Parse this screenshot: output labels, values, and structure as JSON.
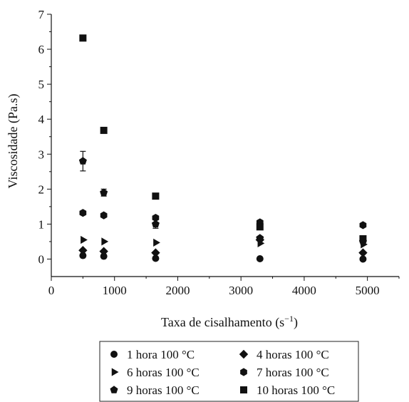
{
  "chart_data": {
    "type": "scatter",
    "xlabel": "Taxa de cisalhamento (s",
    "xlabel_sup": "−1",
    "xlabel_close": ")",
    "ylabel": "Viscosidade (Pa.s)",
    "xlim": [
      0,
      5500
    ],
    "ylim": [
      -0.5,
      7
    ],
    "x_ticks": [
      0,
      1000,
      2000,
      3000,
      4000,
      5000
    ],
    "y_ticks": [
      0,
      1,
      2,
      3,
      4,
      5,
      6,
      7
    ],
    "grid": false,
    "legend_position": "bottom",
    "series": [
      {
        "name": "1 hora 100 °C",
        "marker": "circle",
        "points": [
          [
            500,
            0.1
          ],
          [
            830,
            0.08
          ],
          [
            1650,
            0.02
          ],
          [
            3300,
            0.01
          ],
          [
            4930,
            0.0
          ]
        ]
      },
      {
        "name": "4 horas 100 °C",
        "marker": "diamond",
        "points": [
          [
            500,
            0.25
          ],
          [
            830,
            0.22
          ],
          [
            1650,
            0.18
          ],
          [
            3300,
            0.55
          ],
          [
            4930,
            0.18
          ]
        ]
      },
      {
        "name": "6 horas 100 °C",
        "marker": "triangle-right",
        "points": [
          [
            500,
            0.55
          ],
          [
            830,
            0.5
          ],
          [
            1650,
            0.47
          ],
          [
            3300,
            0.45
          ],
          [
            4930,
            0.42
          ]
        ]
      },
      {
        "name": "7 horas 100 °C",
        "marker": "hexagon",
        "points": [
          [
            500,
            1.32
          ],
          [
            830,
            1.25
          ],
          [
            1650,
            1.18
          ],
          [
            3300,
            1.05
          ],
          [
            4930,
            0.97
          ]
        ]
      },
      {
        "name": "9 horas 100 °C",
        "marker": "pentagon",
        "points": [
          [
            500,
            2.8
          ],
          [
            830,
            1.9
          ],
          [
            1650,
            1.0
          ],
          [
            3300,
            0.6
          ],
          [
            4930,
            0.5
          ]
        ],
        "error": [
          0.28,
          0.1,
          0.12,
          0,
          0
        ]
      },
      {
        "name": "10 horas 100 °C",
        "marker": "square",
        "points": [
          [
            500,
            6.32
          ],
          [
            830,
            3.68
          ],
          [
            1650,
            1.8
          ],
          [
            3300,
            0.92
          ],
          [
            4930,
            0.58
          ]
        ]
      }
    ]
  }
}
